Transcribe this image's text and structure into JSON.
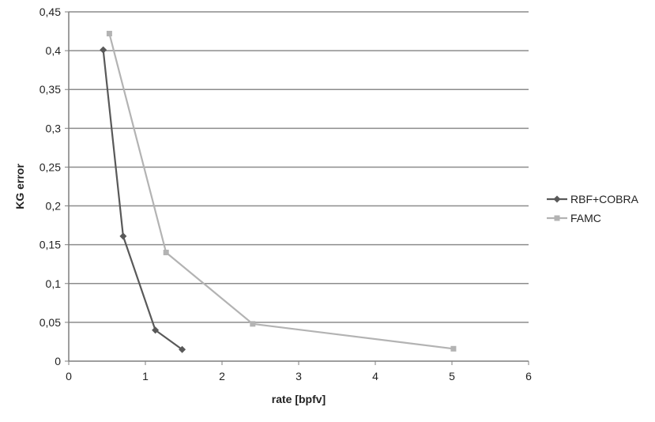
{
  "chart_data": {
    "type": "line",
    "title": "",
    "xlabel": "rate [bpfv]",
    "ylabel": "KG error",
    "xlim": [
      0,
      6
    ],
    "ylim": [
      0,
      0.45
    ],
    "x_ticks": [
      0,
      1,
      2,
      3,
      4,
      5,
      6
    ],
    "x_tick_labels": [
      "0",
      "1",
      "2",
      "3",
      "4",
      "5",
      "6"
    ],
    "y_ticks": [
      0,
      0.05,
      0.1,
      0.15,
      0.2,
      0.25,
      0.3,
      0.35,
      0.4,
      0.45
    ],
    "y_tick_labels": [
      "0",
      "0,05",
      "0,1",
      "0,15",
      "0,2",
      "0,25",
      "0,3",
      "0,35",
      "0,4",
      "0,45"
    ],
    "grid": "horizontal",
    "legend_position": "right",
    "series": [
      {
        "name": "RBF+COBRA",
        "color": "#595959",
        "marker": "diamond",
        "x": [
          0.45,
          0.71,
          1.13,
          1.48
        ],
        "y": [
          0.401,
          0.161,
          0.04,
          0.015
        ]
      },
      {
        "name": "FAMC",
        "color": "#b3b3b3",
        "marker": "square",
        "x": [
          0.53,
          1.27,
          2.4,
          5.02
        ],
        "y": [
          0.422,
          0.14,
          0.048,
          0.016
        ]
      }
    ]
  }
}
